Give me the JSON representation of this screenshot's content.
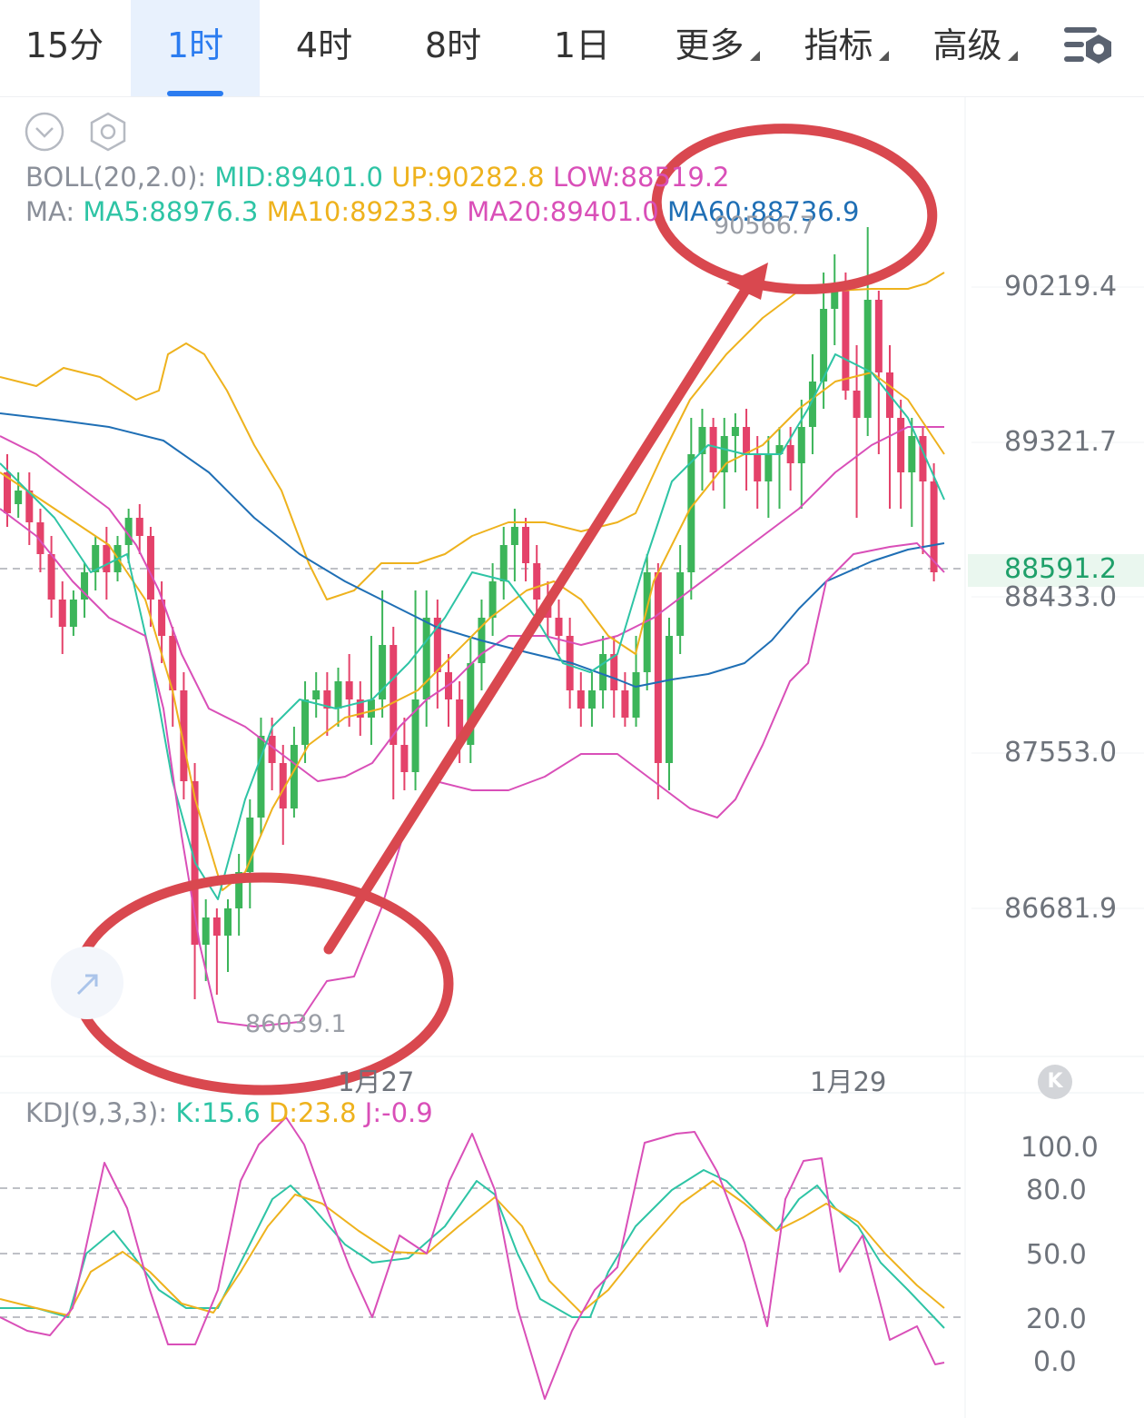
{
  "tabs": [
    {
      "label": "15分",
      "active": false,
      "caret": false
    },
    {
      "label": "1时",
      "active": true,
      "caret": false
    },
    {
      "label": "4时",
      "active": false,
      "caret": false
    },
    {
      "label": "8时",
      "active": false,
      "caret": false
    },
    {
      "label": "1日",
      "active": false,
      "caret": false
    },
    {
      "label": "更多",
      "active": false,
      "caret": true
    },
    {
      "label": "指标",
      "active": false,
      "caret": true
    },
    {
      "label": "高级",
      "active": false,
      "caret": true
    }
  ],
  "settings_icon": "chart-settings-icon",
  "legend": {
    "boll": {
      "prefix": "BOLL(20,2.0):",
      "mid": "MID:89401.0",
      "up": "UP:90282.8",
      "low": "LOW:88519.2"
    },
    "ma": {
      "prefix": "MA:",
      "ma5": "MA5:88976.3",
      "ma10": "MA10:89233.9",
      "ma20": "MA20:89401.0",
      "ma60": "MA60:88736.9"
    },
    "kdj": {
      "prefix": "KDJ(9,3,3):",
      "k": "K:15.6",
      "d": "D:23.8",
      "j": "J:-0.9"
    }
  },
  "colors": {
    "up": "#3cb55a",
    "down": "#e4426a",
    "ma5": "#2ec4a5",
    "ma10": "#eeb21d",
    "ma20": "#d94fb8",
    "ma60": "#1f6fb5",
    "annotation": "#d9484f",
    "price": "#1fa06a",
    "axis": "#6e737b"
  },
  "price_axis": [
    "90219.4",
    "89321.7",
    "88433.0",
    "87553.0",
    "86681.9"
  ],
  "current_price": "88591.2",
  "high_label": "90566.7",
  "low_label": "86039.1",
  "date_labels": [
    "1月27",
    "1月29"
  ],
  "kdj_axis": [
    "100.0",
    "80.0",
    "50.0",
    "20.0",
    "0.0"
  ],
  "chart_data": {
    "type": "candlestick",
    "interval": "1h",
    "y_range": [
      85700,
      90800
    ],
    "candles_count": 85,
    "x_labels": [
      "1月27",
      "1月29"
    ],
    "highest": 90566.7,
    "lowest": 86039.1,
    "last": 88591.2,
    "series": [
      {
        "name": "BOLL MID",
        "last": 89401.0
      },
      {
        "name": "BOLL UP",
        "last": 90282.8
      },
      {
        "name": "BOLL LOW",
        "last": 88519.2
      },
      {
        "name": "MA5",
        "last": 88976.3
      },
      {
        "name": "MA10",
        "last": 89233.9
      },
      {
        "name": "MA20",
        "last": 89401.0
      },
      {
        "name": "MA60",
        "last": 88736.9
      }
    ],
    "kdj": {
      "k": 15.6,
      "d": 23.8,
      "j": -0.9,
      "levels": [
        80,
        50,
        20
      ],
      "axis": [
        0,
        20,
        50,
        80,
        100
      ]
    },
    "annotations": [
      "circle around low",
      "circle around high",
      "arrow from low to high"
    ]
  }
}
